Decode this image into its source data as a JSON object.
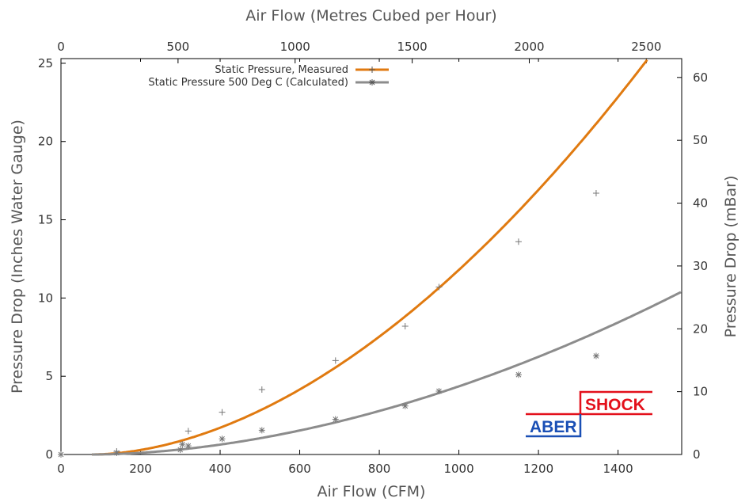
{
  "chart_data": {
    "type": "scatter",
    "xlabel": "Air Flow (CFM)",
    "x2label": "Air Flow (Metres Cubed per Hour)",
    "ylabel": "Pressure Drop (Inches Water Gauge)",
    "y2label": "Pressure Drop (mBar)",
    "xlim": [
      0,
      1560
    ],
    "ylim": [
      0,
      25.3
    ],
    "x2lim": [
      0,
      2651
    ],
    "y2lim": [
      0,
      63
    ],
    "xticks": [
      "0",
      "200",
      "400",
      "600",
      "800",
      "1000",
      "1200",
      "1400"
    ],
    "xtick_values": [
      0,
      200,
      400,
      600,
      800,
      1000,
      1200,
      1400
    ],
    "yticks": [
      "0",
      "5",
      "10",
      "15",
      "20",
      "25"
    ],
    "ytick_values": [
      0,
      5,
      10,
      15,
      20,
      25
    ],
    "x2ticks": [
      "0",
      "500",
      "1000",
      "1500",
      "2000",
      "2500"
    ],
    "x2tick_values": [
      0,
      500,
      1000,
      1500,
      2000,
      2500
    ],
    "y2ticks": [
      "0",
      "10",
      "20",
      "30",
      "40",
      "50",
      "60"
    ],
    "y2tick_values": [
      0,
      10,
      20,
      30,
      40,
      50,
      60
    ],
    "legend_position": "top-left",
    "series": [
      {
        "name": "Static Pressure, Measured",
        "color": "#e07a10",
        "marker": "plus",
        "points": [
          {
            "x": 0,
            "y": 0
          },
          {
            "x": 140,
            "y": 0.2
          },
          {
            "x": 320,
            "y": 1.5
          },
          {
            "x": 405,
            "y": 2.7
          },
          {
            "x": 505,
            "y": 4.15
          },
          {
            "x": 690,
            "y": 6.0
          },
          {
            "x": 865,
            "y": 8.2
          },
          {
            "x": 950,
            "y": 10.7
          },
          {
            "x": 1150,
            "y": 13.6
          },
          {
            "x": 1345,
            "y": 16.7
          }
        ],
        "fit": {
          "x0": 78,
          "k": 4.28e-05,
          "p": 1.835
        }
      },
      {
        "name": "Static Pressure 500 Deg C (Calculated)",
        "color": "#8c8c8c",
        "marker": "star",
        "points": [
          {
            "x": 0,
            "y": 0
          },
          {
            "x": 140,
            "y": 0.1
          },
          {
            "x": 300,
            "y": 0.3
          },
          {
            "x": 305,
            "y": 0.65
          },
          {
            "x": 320,
            "y": 0.55
          },
          {
            "x": 405,
            "y": 1.0
          },
          {
            "x": 505,
            "y": 1.55
          },
          {
            "x": 690,
            "y": 2.25
          },
          {
            "x": 865,
            "y": 3.1
          },
          {
            "x": 950,
            "y": 4.05
          },
          {
            "x": 1150,
            "y": 5.1
          },
          {
            "x": 1345,
            "y": 6.3
          }
        ],
        "fit": {
          "x0": 78,
          "k": 1.58e-05,
          "p": 1.835
        }
      }
    ]
  },
  "logo": {
    "word_left": "ABER",
    "word_right": "SHOCK",
    "color_left": "#1a4fb5",
    "color_right": "#e3101b"
  }
}
